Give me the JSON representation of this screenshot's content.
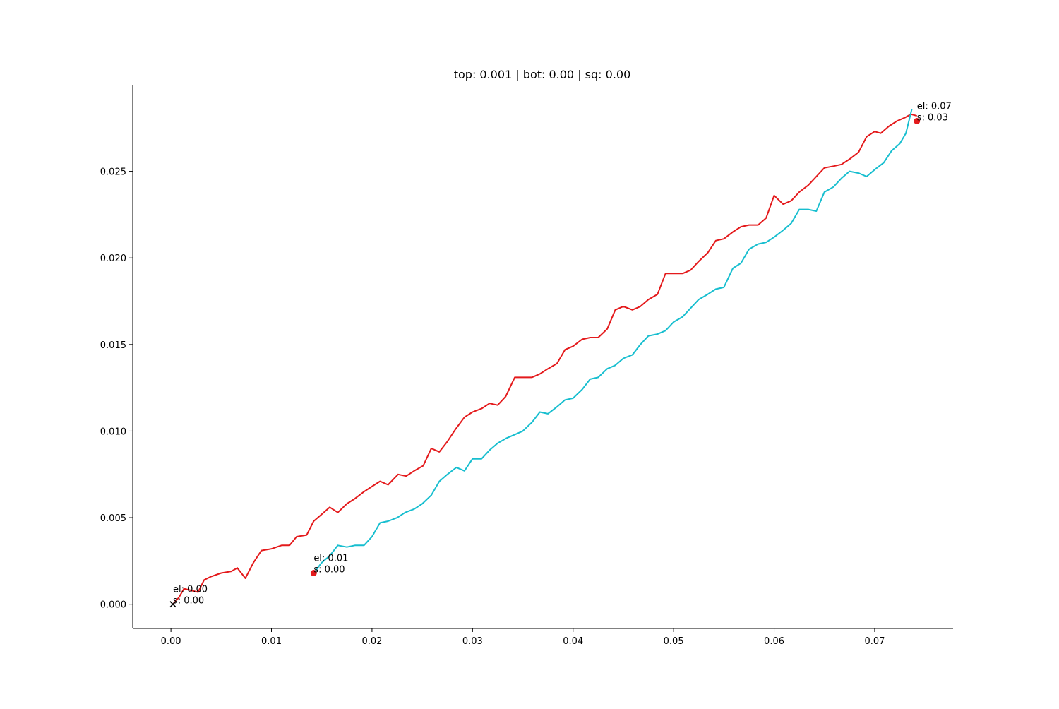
{
  "chart_data": {
    "type": "line",
    "title": "top: 0.001 | bot: 0.00 | sq: 0.00",
    "xlabel": "",
    "ylabel": "",
    "xlim": [
      -0.0038,
      0.0778
    ],
    "ylim": [
      -0.0014,
      0.03
    ],
    "grid": false,
    "x_ticks": [
      0.0,
      0.01,
      0.02,
      0.03,
      0.04,
      0.05,
      0.06,
      0.07
    ],
    "x_tick_labels": [
      "0.00",
      "0.01",
      "0.02",
      "0.03",
      "0.04",
      "0.05",
      "0.06",
      "0.07"
    ],
    "y_ticks": [
      0.0,
      0.005,
      0.01,
      0.015,
      0.02,
      0.025
    ],
    "y_tick_labels": [
      "0.000",
      "0.005",
      "0.010",
      "0.015",
      "0.020",
      "0.025"
    ],
    "series": [
      {
        "color": "#e41a1c",
        "points": [
          [
            0.0002,
            0.0
          ],
          [
            0.0008,
            0.0004
          ],
          [
            0.0013,
            0.0009
          ],
          [
            0.002,
            0.0008
          ],
          [
            0.0027,
            0.0007
          ],
          [
            0.0033,
            0.0014
          ],
          [
            0.004,
            0.0016
          ],
          [
            0.005,
            0.0018
          ],
          [
            0.006,
            0.0019
          ],
          [
            0.0066,
            0.0021
          ],
          [
            0.0074,
            0.0015
          ],
          [
            0.0082,
            0.0024
          ],
          [
            0.009,
            0.0031
          ],
          [
            0.01,
            0.0032
          ],
          [
            0.011,
            0.0034
          ],
          [
            0.0118,
            0.0034
          ],
          [
            0.0125,
            0.0039
          ],
          [
            0.0135,
            0.004
          ],
          [
            0.0142,
            0.0048
          ],
          [
            0.015,
            0.0052
          ],
          [
            0.0158,
            0.0056
          ],
          [
            0.0166,
            0.0053
          ],
          [
            0.0175,
            0.0058
          ],
          [
            0.0183,
            0.0061
          ],
          [
            0.0192,
            0.0065
          ],
          [
            0.02,
            0.0068
          ],
          [
            0.0208,
            0.0071
          ],
          [
            0.0216,
            0.0069
          ],
          [
            0.0226,
            0.0075
          ],
          [
            0.0234,
            0.0074
          ],
          [
            0.0242,
            0.0077
          ],
          [
            0.0251,
            0.008
          ],
          [
            0.0259,
            0.009
          ],
          [
            0.0267,
            0.0088
          ],
          [
            0.0275,
            0.0094
          ],
          [
            0.0283,
            0.0101
          ],
          [
            0.0292,
            0.0108
          ],
          [
            0.03,
            0.0111
          ],
          [
            0.0309,
            0.0113
          ],
          [
            0.0317,
            0.0116
          ],
          [
            0.0325,
            0.0115
          ],
          [
            0.0333,
            0.012
          ],
          [
            0.0342,
            0.0131
          ],
          [
            0.035,
            0.0131
          ],
          [
            0.0359,
            0.0131
          ],
          [
            0.0367,
            0.0133
          ],
          [
            0.0375,
            0.0136
          ],
          [
            0.0384,
            0.0139
          ],
          [
            0.0392,
            0.0147
          ],
          [
            0.04,
            0.0149
          ],
          [
            0.0409,
            0.0153
          ],
          [
            0.0417,
            0.0154
          ],
          [
            0.0425,
            0.0154
          ],
          [
            0.0434,
            0.0159
          ],
          [
            0.0442,
            0.017
          ],
          [
            0.045,
            0.0172
          ],
          [
            0.0459,
            0.017
          ],
          [
            0.0467,
            0.0172
          ],
          [
            0.0475,
            0.0176
          ],
          [
            0.0484,
            0.0179
          ],
          [
            0.0492,
            0.0191
          ],
          [
            0.05,
            0.0191
          ],
          [
            0.0509,
            0.0191
          ],
          [
            0.0517,
            0.0193
          ],
          [
            0.0525,
            0.0198
          ],
          [
            0.0534,
            0.0203
          ],
          [
            0.0542,
            0.021
          ],
          [
            0.055,
            0.0211
          ],
          [
            0.0559,
            0.0215
          ],
          [
            0.0567,
            0.0218
          ],
          [
            0.0575,
            0.0219
          ],
          [
            0.0584,
            0.0219
          ],
          [
            0.0592,
            0.0223
          ],
          [
            0.06,
            0.0236
          ],
          [
            0.0609,
            0.0231
          ],
          [
            0.0617,
            0.0233
          ],
          [
            0.0625,
            0.0238
          ],
          [
            0.0634,
            0.0242
          ],
          [
            0.0642,
            0.0247
          ],
          [
            0.065,
            0.0252
          ],
          [
            0.0659,
            0.0253
          ],
          [
            0.0667,
            0.0254
          ],
          [
            0.0675,
            0.0257
          ],
          [
            0.0684,
            0.0261
          ],
          [
            0.0692,
            0.027
          ],
          [
            0.07,
            0.0273
          ],
          [
            0.0706,
            0.0272
          ],
          [
            0.0714,
            0.0276
          ],
          [
            0.0722,
            0.0279
          ],
          [
            0.073,
            0.0281
          ],
          [
            0.0736,
            0.0283
          ],
          [
            0.0742,
            0.0282
          ]
        ]
      },
      {
        "color": "#17becf",
        "points": [
          [
            0.0142,
            0.0018
          ],
          [
            0.015,
            0.0024
          ],
          [
            0.0158,
            0.0028
          ],
          [
            0.0166,
            0.0034
          ],
          [
            0.0175,
            0.0033
          ],
          [
            0.0183,
            0.0034
          ],
          [
            0.0192,
            0.0034
          ],
          [
            0.02,
            0.0039
          ],
          [
            0.0208,
            0.0047
          ],
          [
            0.0216,
            0.0048
          ],
          [
            0.0225,
            0.005
          ],
          [
            0.0233,
            0.0053
          ],
          [
            0.0242,
            0.0055
          ],
          [
            0.025,
            0.0058
          ],
          [
            0.0259,
            0.0063
          ],
          [
            0.0267,
            0.0071
          ],
          [
            0.0275,
            0.0075
          ],
          [
            0.0284,
            0.0079
          ],
          [
            0.0292,
            0.0077
          ],
          [
            0.03,
            0.0084
          ],
          [
            0.0309,
            0.0084
          ],
          [
            0.0317,
            0.0089
          ],
          [
            0.0325,
            0.0093
          ],
          [
            0.0334,
            0.0096
          ],
          [
            0.0342,
            0.0098
          ],
          [
            0.035,
            0.01
          ],
          [
            0.0359,
            0.0105
          ],
          [
            0.0367,
            0.0111
          ],
          [
            0.0375,
            0.011
          ],
          [
            0.0384,
            0.0114
          ],
          [
            0.0392,
            0.0118
          ],
          [
            0.04,
            0.0119
          ],
          [
            0.0409,
            0.0124
          ],
          [
            0.0417,
            0.013
          ],
          [
            0.0425,
            0.0131
          ],
          [
            0.0434,
            0.0136
          ],
          [
            0.0442,
            0.0138
          ],
          [
            0.045,
            0.0142
          ],
          [
            0.0459,
            0.0144
          ],
          [
            0.0467,
            0.015
          ],
          [
            0.0475,
            0.0155
          ],
          [
            0.0484,
            0.0156
          ],
          [
            0.0492,
            0.0158
          ],
          [
            0.05,
            0.0163
          ],
          [
            0.0509,
            0.0166
          ],
          [
            0.0517,
            0.0171
          ],
          [
            0.0525,
            0.0176
          ],
          [
            0.0534,
            0.0179
          ],
          [
            0.0542,
            0.0182
          ],
          [
            0.055,
            0.0183
          ],
          [
            0.0559,
            0.0194
          ],
          [
            0.0567,
            0.0197
          ],
          [
            0.0575,
            0.0205
          ],
          [
            0.0584,
            0.0208
          ],
          [
            0.0592,
            0.0209
          ],
          [
            0.06,
            0.0212
          ],
          [
            0.0609,
            0.0216
          ],
          [
            0.0617,
            0.022
          ],
          [
            0.0625,
            0.0228
          ],
          [
            0.0634,
            0.0228
          ],
          [
            0.0642,
            0.0227
          ],
          [
            0.065,
            0.0238
          ],
          [
            0.0659,
            0.0241
          ],
          [
            0.0667,
            0.0246
          ],
          [
            0.0675,
            0.025
          ],
          [
            0.0684,
            0.0249
          ],
          [
            0.0692,
            0.0247
          ],
          [
            0.07,
            0.0251
          ],
          [
            0.0709,
            0.0255
          ],
          [
            0.0717,
            0.0262
          ],
          [
            0.0725,
            0.0266
          ],
          [
            0.0731,
            0.0272
          ],
          [
            0.0737,
            0.0286
          ]
        ]
      }
    ],
    "markers": [
      {
        "x": 0.0002,
        "y": 0.0,
        "symbol": "x",
        "color": "#000000"
      },
      {
        "x": 0.0142,
        "y": 0.0018,
        "symbol": "dot",
        "color": "#e41a1c"
      },
      {
        "x": 0.0742,
        "y": 0.0279,
        "symbol": "dot",
        "color": "#e41a1c"
      }
    ],
    "annotations": [
      {
        "x": 0.0002,
        "y": 0.0,
        "line1": "el: 0.00",
        "line2": "s: 0.00"
      },
      {
        "x": 0.0142,
        "y": 0.0018,
        "line1": "el: 0.01",
        "line2": "s: 0.00"
      },
      {
        "x": 0.0742,
        "y": 0.0279,
        "line1": "el: 0.07",
        "line2": "s: 0.03"
      }
    ]
  }
}
